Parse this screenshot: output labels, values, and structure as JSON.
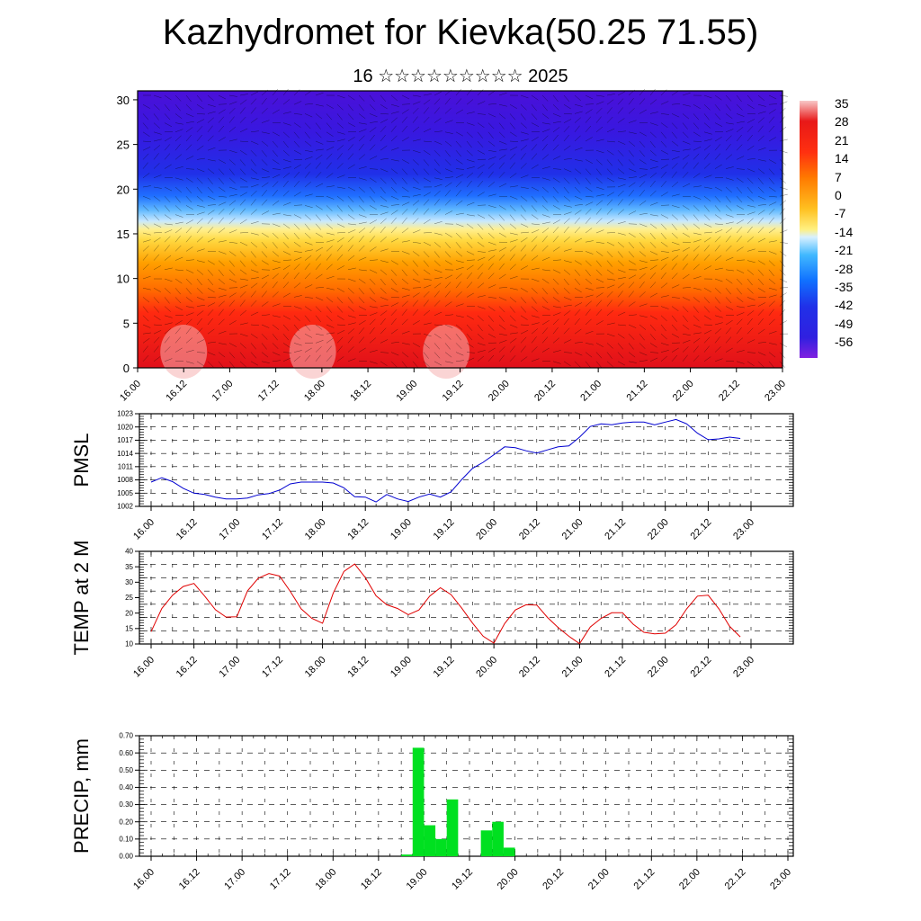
{
  "title": "Kazhydromet for Kievka(50.25 71.55)",
  "subtitle": "16 ☆☆☆☆☆☆☆☆☆ 2025",
  "time_labels": [
    "16.00",
    "16.12",
    "17.00",
    "17.12",
    "18.00",
    "18.12",
    "19.00",
    "19.12",
    "20.00",
    "20.12",
    "21.00",
    "21.12",
    "22.00",
    "22.12",
    "23.00"
  ],
  "colorbar": {
    "labels": [
      "35",
      "28",
      "21",
      "14",
      "7",
      "0",
      "-7",
      "-14",
      "-21",
      "-28",
      "-35",
      "-42",
      "-49",
      "-56"
    ],
    "colors": [
      "#f6c0c0",
      "#e01010",
      "#ff5a00",
      "#ffb000",
      "#ffe870",
      "#b8e0ff",
      "#30b0ff",
      "#0060ff",
      "#2020e0",
      "#8020e0"
    ]
  },
  "chart_data": [
    {
      "type": "heatmap",
      "title": "",
      "ylabel": "",
      "yticks": [
        "0",
        "5",
        "10",
        "15",
        "20",
        "25",
        "30"
      ],
      "ylim": [
        0,
        31
      ],
      "xlim": [
        0,
        14
      ],
      "description_levels": "temperature vs height, colorbar -56..35",
      "bands": [
        {
          "y_from": 0,
          "y_to": 9,
          "value": 25
        },
        {
          "y_from": 9,
          "y_to": 14,
          "value": 12
        },
        {
          "y_from": 14,
          "y_to": 17,
          "value": 2
        },
        {
          "y_from": 17,
          "y_to": 21,
          "value": -20
        },
        {
          "y_from": 21,
          "y_to": 31,
          "value": -50
        }
      ]
    },
    {
      "type": "line",
      "ylabel": "PMSL",
      "yticks": [
        "1002",
        "1005",
        "1008",
        "1011",
        "1014",
        "1017",
        "1020",
        "1023"
      ],
      "ylim": [
        1002,
        1023
      ],
      "xlim": [
        0,
        14
      ],
      "series": [
        {
          "color": "#0000d0",
          "x": [
            0,
            0.25,
            0.5,
            0.75,
            1,
            1.25,
            1.5,
            1.75,
            2,
            2.25,
            2.5,
            2.75,
            3,
            3.25,
            3.5,
            3.75,
            4,
            4.25,
            4.5,
            4.75,
            5,
            5.25,
            5.5,
            5.75,
            6,
            6.25,
            6.5,
            6.75,
            7,
            7.25,
            7.5,
            7.75,
            8,
            8.25,
            8.5,
            8.75,
            9,
            9.25,
            9.5,
            9.75,
            10,
            10.25,
            10.5,
            10.75,
            11,
            11.25,
            11.5,
            11.75,
            12,
            12.25,
            12.5,
            12.75,
            13,
            13.25,
            13.5,
            13.75
          ],
          "values": [
            1007.5,
            1008.5,
            1007.6,
            1006.1,
            1005,
            1004.7,
            1004.1,
            1003.7,
            1003.7,
            1003.9,
            1004.6,
            1004.9,
            1005.7,
            1007.1,
            1007.5,
            1007.5,
            1007.5,
            1007.3,
            1006.2,
            1004.2,
            1004.1,
            1003,
            1004.7,
            1003.7,
            1003.1,
            1004.1,
            1004.8,
            1004.1,
            1005.3,
            1008.1,
            1010.6,
            1012,
            1013.7,
            1015.5,
            1015.3,
            1014.6,
            1014.1,
            1014.8,
            1015.5,
            1015.7,
            1017.7,
            1020.1,
            1020.7,
            1020.5,
            1020.9,
            1021.1,
            1021.1,
            1020.5,
            1021.1,
            1021.7,
            1020.7,
            1018.6,
            1017.1,
            1017.3,
            1017.7,
            1017.4
          ]
        }
      ]
    },
    {
      "type": "line",
      "ylabel": "TEMP at 2 M",
      "yticks": [
        "10",
        "15",
        "20",
        "25",
        "30",
        "35",
        "40"
      ],
      "ylim": [
        10,
        40
      ],
      "xlim": [
        0,
        14
      ],
      "series": [
        {
          "color": "#e00000",
          "x": [
            0,
            0.25,
            0.5,
            0.75,
            1,
            1.25,
            1.5,
            1.75,
            2,
            2.25,
            2.5,
            2.75,
            3,
            3.25,
            3.5,
            3.75,
            4,
            4.25,
            4.5,
            4.75,
            5,
            5.25,
            5.5,
            5.75,
            6,
            6.25,
            6.5,
            6.75,
            7,
            7.25,
            7.5,
            7.75,
            8,
            8.25,
            8.5,
            8.75,
            9,
            9.25,
            9.5,
            9.75,
            10,
            10.25,
            10.5,
            10.75,
            11,
            11.25,
            11.5,
            11.75,
            12,
            12.25,
            12.5,
            12.75,
            13,
            13.25,
            13.5,
            13.75
          ],
          "values": [
            14,
            21.5,
            25.8,
            28.6,
            29.6,
            25.5,
            21.1,
            18.7,
            18.8,
            27.2,
            31.3,
            32.8,
            32,
            27,
            21.4,
            18.3,
            16.7,
            26.5,
            33.5,
            35.9,
            31.5,
            25.6,
            22.7,
            21.5,
            19.5,
            21,
            25.5,
            28.2,
            26,
            21.6,
            16.8,
            12.5,
            10.3,
            16.6,
            21,
            22.7,
            22.6,
            18.6,
            15.3,
            12.5,
            10.1,
            15.5,
            18.3,
            20.1,
            20.1,
            16.4,
            13.8,
            13.3,
            13.5,
            16.2,
            21.4,
            25.5,
            25.8,
            21.4,
            15.7,
            12.3
          ]
        }
      ]
    },
    {
      "type": "bar",
      "ylabel": "PRECIP, mm",
      "yticks": [
        "0.00",
        "0.10",
        "0.20",
        "0.30",
        "0.40",
        "0.50",
        "0.60",
        "0.70"
      ],
      "ylim": [
        0,
        0.7
      ],
      "xlim": [
        0,
        14
      ],
      "color": "#00e020",
      "bars": [
        {
          "x0": 5.5,
          "x1": 5.75,
          "value": 0.01
        },
        {
          "x0": 5.75,
          "x1": 6.0,
          "value": 0.63
        },
        {
          "x0": 6.0,
          "x1": 6.25,
          "value": 0.18
        },
        {
          "x0": 6.25,
          "x1": 6.5,
          "value": 0.1
        },
        {
          "x0": 6.5,
          "x1": 6.75,
          "value": 0.33
        },
        {
          "x0": 7.25,
          "x1": 7.5,
          "value": 0.15
        },
        {
          "x0": 7.5,
          "x1": 7.75,
          "value": 0.2
        },
        {
          "x0": 7.75,
          "x1": 8.0,
          "value": 0.05
        }
      ]
    }
  ]
}
